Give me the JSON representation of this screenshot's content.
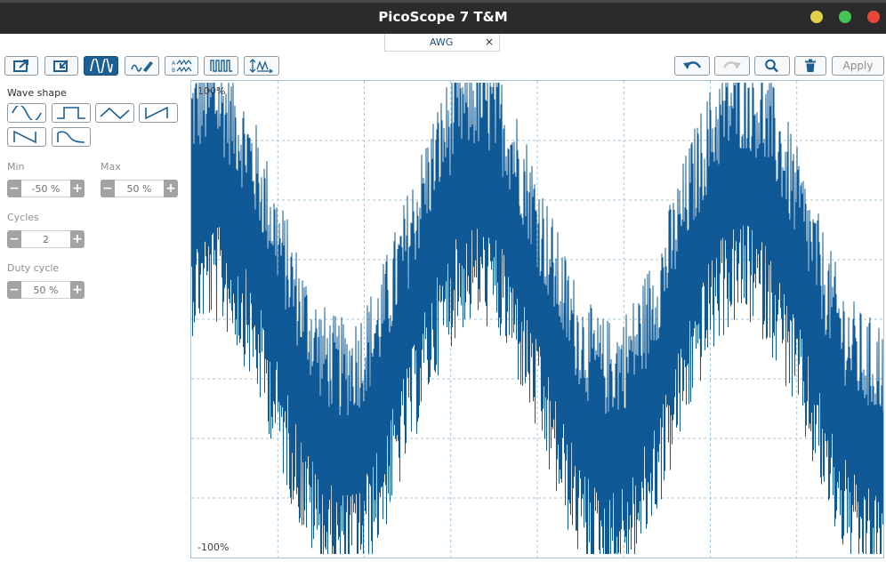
{
  "window": {
    "title": "PicoScope 7 T&M"
  },
  "tab": {
    "label": "AWG",
    "close": "×"
  },
  "toolbar": {
    "apply_label": "Apply"
  },
  "sidebar": {
    "wave_shape_label": "Wave shape",
    "min_label": "Min",
    "min_value": "-50 %",
    "max_label": "Max",
    "max_value": "50 %",
    "cycles_label": "Cycles",
    "cycles_value": "2",
    "duty_label": "Duty cycle",
    "duty_value": "50 %",
    "minus": "−",
    "plus": "+"
  },
  "plot": {
    "y_top_label": "100%",
    "y_bottom_label": "-100%",
    "wave_color": "#0f5a96",
    "grid_color": "#9fc7e0"
  },
  "colors": {
    "close": "#e9453b",
    "maximize": "#44c455",
    "minimize": "#e2d24a",
    "accent": "#1c5f93"
  }
}
